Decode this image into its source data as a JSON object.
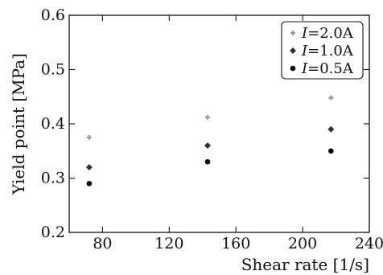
{
  "chart_data": {
    "type": "scatter",
    "xlabel": "Shear rate [1/s]",
    "ylabel": "Yield point [MPa]",
    "xlim": [
      60,
      240
    ],
    "ylim": [
      0.2,
      0.6
    ],
    "xticks": [
      80,
      120,
      160,
      200,
      240
    ],
    "yticks": [
      0.2,
      0.3,
      0.4,
      0.5,
      0.6
    ],
    "xtick_labels": [
      "80",
      "120",
      "160",
      "200",
      "240"
    ],
    "ytick_labels": [
      "0.2",
      "0.3",
      "0.4",
      "0.5",
      "0.6"
    ],
    "grid": false,
    "legend_position": "top-right",
    "series": [
      {
        "name": "I=2.0A",
        "name_var": "I",
        "name_value": "=2.0A",
        "marker": "plus",
        "color": "#9a9a9a",
        "x": [
          72,
          143,
          217
        ],
        "y": [
          0.375,
          0.412,
          0.448
        ]
      },
      {
        "name": "I=1.0A",
        "name_var": "I",
        "name_value": "=1.0A",
        "marker": "diamond",
        "color": "#333333",
        "x": [
          72,
          143,
          217
        ],
        "y": [
          0.32,
          0.36,
          0.39
        ]
      },
      {
        "name": "I=0.5A",
        "name_var": "I",
        "name_value": "=0.5A",
        "marker": "circle",
        "color": "#000000",
        "x": [
          72,
          143,
          217
        ],
        "y": [
          0.29,
          0.33,
          0.35
        ]
      }
    ]
  }
}
